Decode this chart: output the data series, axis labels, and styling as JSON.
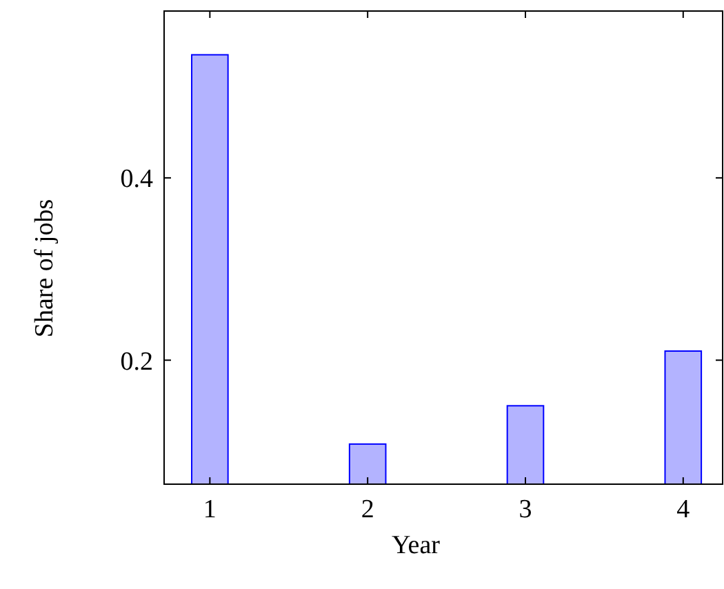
{
  "chart_data": {
    "type": "bar",
    "x": [
      1,
      2,
      3,
      4
    ],
    "values": [
      0.535,
      0.108,
      0.15,
      0.21
    ],
    "color": "#b3b3ff",
    "xlabel": "Year",
    "ylabel": "Share of jobs",
    "xlim": [
      0.71,
      4.25
    ],
    "ylim": [
      0.064,
      0.583
    ],
    "xticks": [
      1,
      2,
      3,
      4
    ],
    "yticks": [
      0.2,
      0.4
    ]
  }
}
